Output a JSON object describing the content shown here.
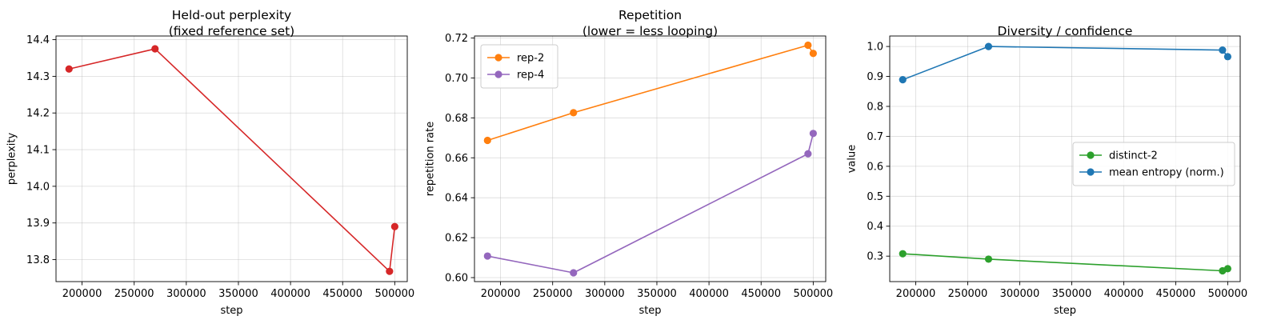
{
  "chart_data": [
    {
      "type": "line",
      "title": [
        "Held-out perplexity",
        "(fixed reference set)"
      ],
      "xlabel": "step",
      "ylabel": "perplexity",
      "xlim": [
        175000,
        512000
      ],
      "ylim": [
        13.74,
        14.41
      ],
      "xticks": [
        200000,
        250000,
        300000,
        350000,
        400000,
        450000,
        500000
      ],
      "xtick_labels": [
        "200000",
        "250000",
        "300000",
        "350000",
        "400000",
        "450000",
        "500000"
      ],
      "yticks": [
        13.8,
        13.9,
        14.0,
        14.1,
        14.2,
        14.3,
        14.4
      ],
      "ytick_labels": [
        "13.8",
        "13.9",
        "14.0",
        "14.1",
        "14.2",
        "14.3",
        "14.4"
      ],
      "grid": true,
      "legend": null,
      "series": [
        {
          "name": "",
          "color": "#d62728",
          "x": [
            187500,
            270000,
            495000,
            500000
          ],
          "y": [
            14.32,
            14.375,
            13.768,
            13.89
          ]
        }
      ]
    },
    {
      "type": "line",
      "title": [
        "Repetition",
        "(lower = less looping)"
      ],
      "xlabel": "step",
      "ylabel": "repetition rate",
      "xlim": [
        175000,
        512000
      ],
      "ylim": [
        0.598,
        0.721
      ],
      "xticks": [
        200000,
        250000,
        300000,
        350000,
        400000,
        450000,
        500000
      ],
      "xtick_labels": [
        "200000",
        "250000",
        "300000",
        "350000",
        "400000",
        "450000",
        "500000"
      ],
      "yticks": [
        0.6,
        0.62,
        0.64,
        0.66,
        0.68,
        0.7,
        0.72
      ],
      "ytick_labels": [
        "0.60",
        "0.62",
        "0.64",
        "0.66",
        "0.68",
        "0.70",
        "0.72"
      ],
      "grid": true,
      "legend": "top-left",
      "series": [
        {
          "name": "rep-2",
          "color": "#ff7f0e",
          "x": [
            187500,
            270000,
            495000,
            500000
          ],
          "y": [
            0.6687,
            0.6826,
            0.7164,
            0.7123
          ]
        },
        {
          "name": "rep-4",
          "color": "#9467bd",
          "x": [
            187500,
            270000,
            495000,
            500000
          ],
          "y": [
            0.6108,
            0.6024,
            0.662,
            0.6722
          ]
        }
      ]
    },
    {
      "type": "line",
      "title": [
        "Diversity / confidence"
      ],
      "xlabel": "step",
      "ylabel": "value",
      "xlim": [
        175000,
        512000
      ],
      "ylim": [
        0.215,
        1.035
      ],
      "xticks": [
        200000,
        250000,
        300000,
        350000,
        400000,
        450000,
        500000
      ],
      "xtick_labels": [
        "200000",
        "250000",
        "300000",
        "350000",
        "400000",
        "450000",
        "500000"
      ],
      "yticks": [
        0.3,
        0.4,
        0.5,
        0.6,
        0.7,
        0.8,
        0.9,
        1.0
      ],
      "ytick_labels": [
        "0.3",
        "0.4",
        "0.5",
        "0.6",
        "0.7",
        "0.8",
        "0.9",
        "1.0"
      ],
      "grid": true,
      "legend": "center-right",
      "series": [
        {
          "name": "distinct-2",
          "color": "#2ca02c",
          "x": [
            187500,
            270000,
            495000,
            500000
          ],
          "y": [
            0.308,
            0.29,
            0.251,
            0.258
          ]
        },
        {
          "name": "mean entropy (norm.)",
          "color": "#1f77b4",
          "x": [
            187500,
            270000,
            495000,
            500000
          ],
          "y": [
            0.889,
            1.0,
            0.988,
            0.966
          ]
        }
      ]
    }
  ]
}
